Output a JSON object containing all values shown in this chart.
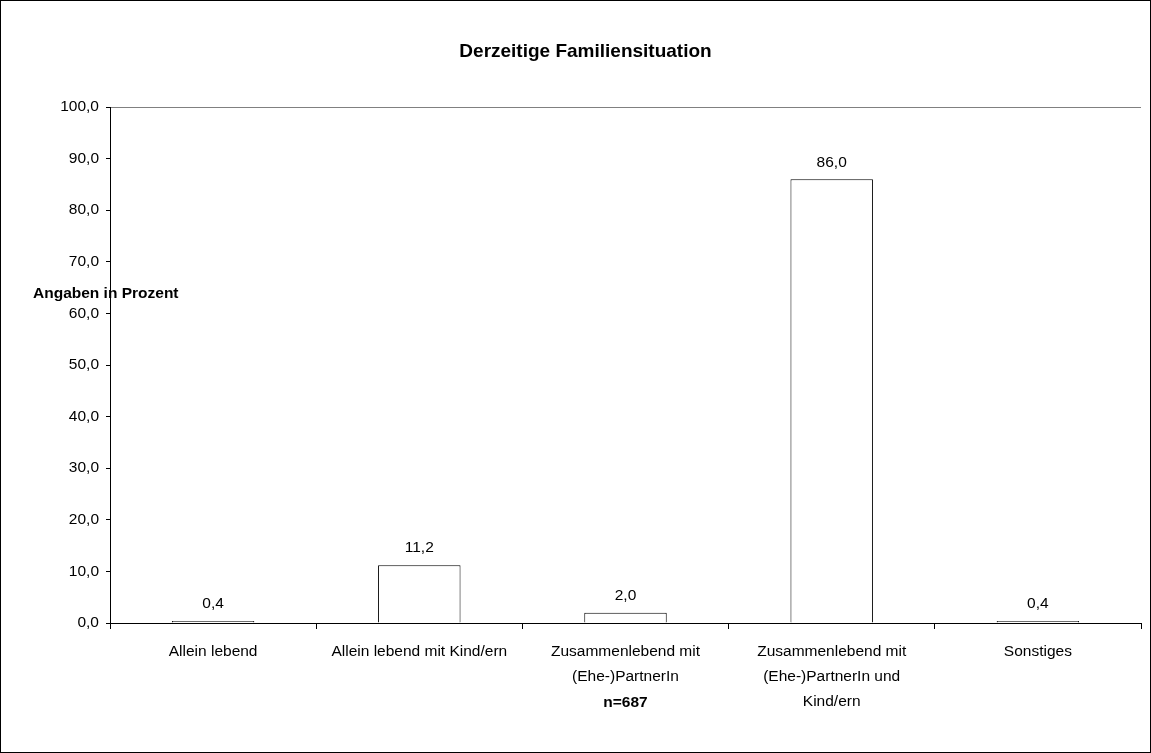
{
  "chart_data": {
    "type": "bar",
    "title": "Derzeitige Familiensituation",
    "ylabel": "Angaben in Prozent",
    "categories": [
      "Allein lebend",
      "Allein lebend mit Kind/ern",
      "Zusammenlebend mit (Ehe-)PartnerIn",
      "Zusammenlebend mit (Ehe-)PartnerIn und Kind/ern",
      "Sonstiges"
    ],
    "values": [
      0.4,
      11.2,
      2.0,
      86.0,
      0.4
    ],
    "color": "#ffffff",
    "value_labels": [
      "0,4",
      "11,2",
      "2,0",
      "86,0",
      "0,4"
    ],
    "ylim": [
      0,
      100
    ],
    "yticks": [
      {
        "value": 0,
        "label": "0,0"
      },
      {
        "value": 10,
        "label": "10,0"
      },
      {
        "value": 20,
        "label": "20,0"
      },
      {
        "value": 30,
        "label": "30,0"
      },
      {
        "value": 40,
        "label": "40,0"
      },
      {
        "value": 50,
        "label": "50,0"
      },
      {
        "value": 60,
        "label": "60,0"
      },
      {
        "value": 70,
        "label": "70,0"
      },
      {
        "value": 80,
        "label": "80,0"
      },
      {
        "value": 90,
        "label": "90,0"
      },
      {
        "value": 100,
        "label": "100,0"
      }
    ],
    "annotations": [
      "n=687"
    ],
    "legend": false
  }
}
